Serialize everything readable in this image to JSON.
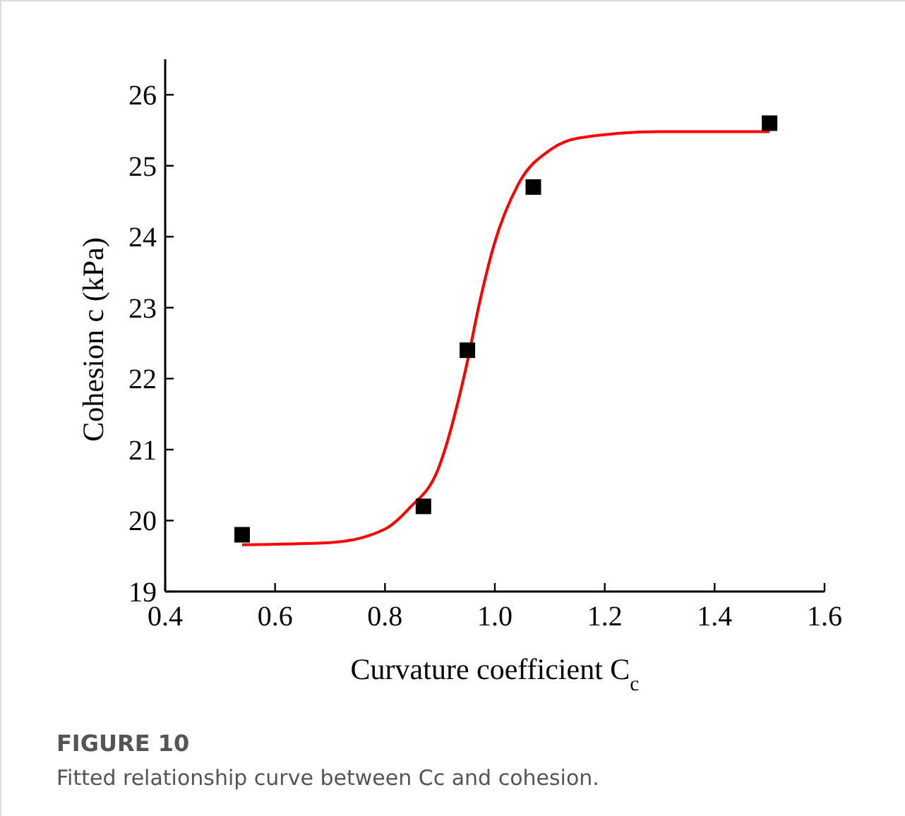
{
  "chart_data": {
    "type": "scatter",
    "xlabel": "Curvature coefficient C$_{c}$",
    "ylabel": "Cohesion c (kPa)",
    "annotations": [
      "FIGURE 10",
      "Fitted relationship curve between Cc and cohesion."
    ],
    "xlim": [
      0.4,
      1.6
    ],
    "ylim": [
      19,
      26.5
    ],
    "xticks": [
      {
        "value": 0.4,
        "label": "0.4"
      },
      {
        "value": 0.6,
        "label": "0.6"
      },
      {
        "value": 0.8,
        "label": "0.8"
      },
      {
        "value": 1.0,
        "label": "1.0"
      },
      {
        "value": 1.2,
        "label": "1.2"
      },
      {
        "value": 1.4,
        "label": "1.4"
      },
      {
        "value": 1.6,
        "label": "1.6"
      }
    ],
    "yticks": [
      19,
      20,
      21,
      22,
      23,
      24,
      25,
      26
    ],
    "grid": false,
    "series": [
      {
        "color": "#000000",
        "marker": "square",
        "x": [
          0.54,
          0.87,
          0.95,
          1.07,
          1.5
        ],
        "values": [
          19.8,
          20.2,
          22.4,
          24.7,
          25.6
        ]
      },
      {
        "type": "line",
        "color": "#ff0000",
        "marker": "none",
        "line_style": "solid",
        "x": [
          0.54,
          0.7,
          0.8,
          0.845,
          0.896,
          0.948,
          0.973,
          0.999,
          1.042,
          1.102,
          1.153,
          1.3,
          1.5
        ],
        "values": [
          19.66,
          19.69,
          19.88,
          20.18,
          20.71,
          22.17,
          23.1,
          23.9,
          24.73,
          25.23,
          25.39,
          25.48,
          25.48
        ]
      }
    ]
  }
}
